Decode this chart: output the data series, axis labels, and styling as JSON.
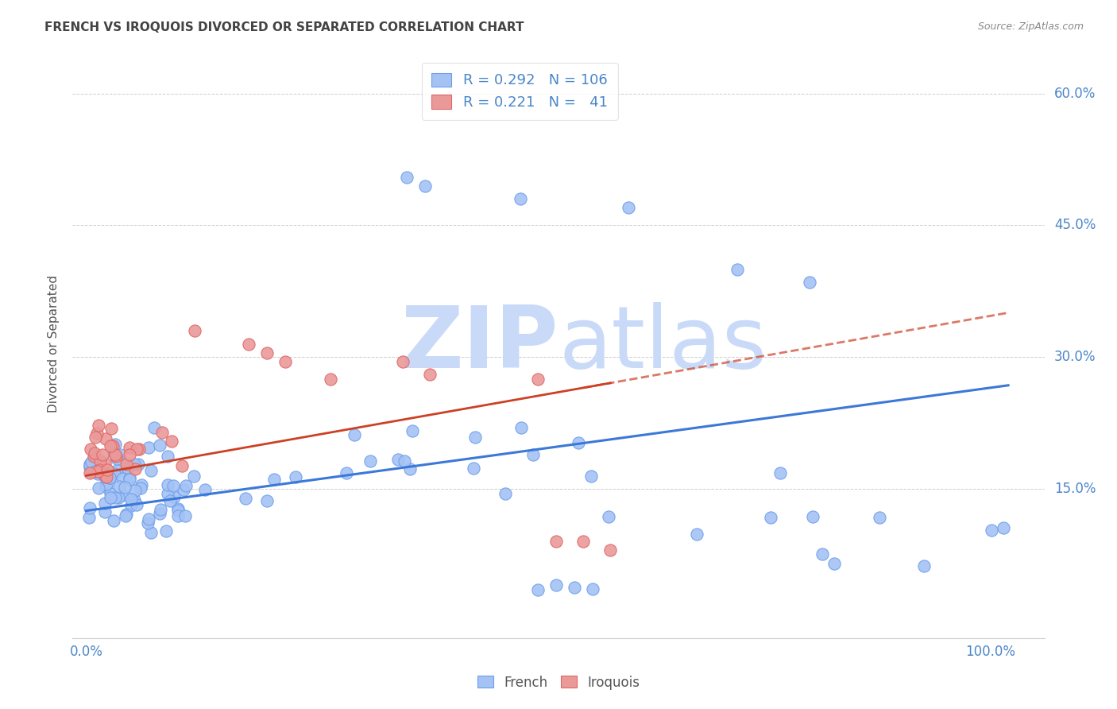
{
  "title": "FRENCH VS IROQUOIS DIVORCED OR SEPARATED CORRELATION CHART",
  "source": "Source: ZipAtlas.com",
  "ylabel": "Divorced or Separated",
  "french_R": 0.292,
  "french_N": 106,
  "iroquois_R": 0.221,
  "iroquois_N": 41,
  "french_color": "#a4c2f4",
  "iroquois_color": "#ea9999",
  "french_edge_color": "#6d9eeb",
  "iroquois_edge_color": "#e06666",
  "french_line_color": "#3c78d8",
  "iroquois_line_color": "#cc4125",
  "watermark_zip_color": "#c9daf8",
  "watermark_atlas_color": "#c9daf8",
  "title_color": "#434343",
  "axis_tick_color": "#4a86c8",
  "legend_text_color": "#4a86c8",
  "grid_color": "#b7b7b7",
  "background_color": "#ffffff",
  "xlim": [
    -0.015,
    1.06
  ],
  "ylim": [
    -0.02,
    0.65
  ],
  "x_ticks": [
    0.0,
    0.2,
    0.4,
    0.6,
    0.8,
    1.0
  ],
  "x_ticklabels": [
    "0.0%",
    "",
    "",
    "",
    "",
    "100.0%"
  ],
  "y_ticks": [
    0.15,
    0.3,
    0.45,
    0.6
  ],
  "y_ticklabels": [
    "15.0%",
    "30.0%",
    "45.0%",
    "60.0%"
  ],
  "french_line_x0": 0.0,
  "french_line_y0": 0.125,
  "french_line_x1": 1.0,
  "french_line_y1": 0.265,
  "iroquois_line_x0": 0.0,
  "iroquois_line_x1": 0.55,
  "iroquois_line_y0": 0.165,
  "iroquois_line_y1": 0.265
}
